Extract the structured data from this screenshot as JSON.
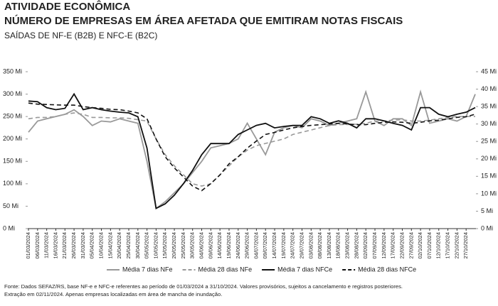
{
  "chart_data": {
    "type": "line",
    "title": "ATIVIDADE ECONÔMICA",
    "subtitle": "NÚMERO DE EMPRESAS EM ÁREA AFETADA QUE EMITIRAM NOTAS FISCAIS",
    "subtitle2": "SAÍDAS DE NF-E (B2B) E NFC-E (B2C)",
    "categories": [
      "01/03/2024",
      "06/03/2024",
      "11/03/2024",
      "16/03/2024",
      "21/03/2024",
      "26/03/2024",
      "31/03/2024",
      "05/04/2024",
      "10/04/2024",
      "15/04/2024",
      "20/04/2024",
      "25/04/2024",
      "30/04/2024",
      "05/05/2024",
      "10/05/2024",
      "15/05/2024",
      "20/05/2024",
      "25/05/2024",
      "30/05/2024",
      "04/06/2024",
      "09/06/2024",
      "14/06/2024",
      "19/06/2024",
      "24/06/2024",
      "29/06/2024",
      "04/07/2024",
      "09/07/2024",
      "14/07/2024",
      "19/07/2024",
      "24/07/2024",
      "29/07/2024",
      "03/08/2024",
      "08/08/2024",
      "13/08/2024",
      "18/08/2024",
      "23/08/2024",
      "28/08/2024",
      "02/09/2024",
      "07/09/2024",
      "12/09/2024",
      "17/09/2024",
      "22/09/2024",
      "27/09/2024",
      "02/10/2024",
      "07/10/2024",
      "12/10/2024",
      "17/10/2024",
      "22/10/2024",
      "27/10/2024",
      null
    ],
    "ylim": [
      0,
      350
    ],
    "yticks": [
      {
        "value": 0,
        "label": "0 Mi"
      },
      {
        "value": 50,
        "label": "50 Mi"
      },
      {
        "value": 100,
        "label": "100 Mi"
      },
      {
        "value": 150,
        "label": "150 Mi"
      },
      {
        "value": 200,
        "label": "200 Mi"
      },
      {
        "value": 250,
        "label": "250 Mi"
      },
      {
        "value": 300,
        "label": "300 Mi"
      },
      {
        "value": 350,
        "label": "350 Mi"
      }
    ],
    "y2lim": [
      0,
      45
    ],
    "y2ticks": [
      {
        "value": 0,
        "label": "0 Mi"
      },
      {
        "value": 5,
        "label": "5 Mi"
      },
      {
        "value": 10,
        "label": "10 Mi"
      },
      {
        "value": 15,
        "label": "15 Mi"
      },
      {
        "value": 20,
        "label": "20 Mi"
      },
      {
        "value": 25,
        "label": "25 Mi"
      },
      {
        "value": 30,
        "label": "30 Mi"
      },
      {
        "value": 35,
        "label": "35 Mi"
      },
      {
        "value": 40,
        "label": "40 Mi"
      },
      {
        "value": 45,
        "label": "45 Mi"
      }
    ],
    "series": [
      {
        "name": "Média 7 dias NFe",
        "color": "#999999",
        "dash": false,
        "values": [
          215,
          240,
          245,
          250,
          255,
          265,
          250,
          230,
          240,
          238,
          245,
          240,
          235,
          150,
          45,
          60,
          80,
          100,
          125,
          150,
          180,
          185,
          190,
          200,
          235,
          200,
          165,
          215,
          225,
          230,
          225,
          245,
          240,
          230,
          235,
          240,
          245,
          305,
          240,
          230,
          245,
          245,
          230,
          305,
          235,
          240,
          245,
          240,
          250,
          300
        ]
      },
      {
        "name": "Média 28 dias NFe",
        "color": "#999999",
        "dash": true,
        "values": [
          245,
          248,
          248,
          250,
          255,
          258,
          255,
          248,
          248,
          247,
          247,
          246,
          243,
          240,
          200,
          165,
          140,
          120,
          100,
          95,
          100,
          120,
          140,
          160,
          175,
          185,
          190,
          195,
          200,
          210,
          215,
          220,
          225,
          230,
          232,
          232,
          233,
          235,
          240,
          240,
          242,
          243,
          240,
          240,
          242,
          245,
          248,
          250,
          250,
          250
        ]
      },
      {
        "name": "Média 7 dias NFCe",
        "color": "#111111",
        "dash": false,
        "axis": "y2",
        "values": [
          36.6,
          36.4,
          34.7,
          34.1,
          34.5,
          38.6,
          34.1,
          34.7,
          34.1,
          33.7,
          33.4,
          33.2,
          32.1,
          23.1,
          5.8,
          7.1,
          9.6,
          12.9,
          16.7,
          21.2,
          24.4,
          24.4,
          24.4,
          27.0,
          28.3,
          29.6,
          30.2,
          28.9,
          29.3,
          29.6,
          29.6,
          32.1,
          31.5,
          30.2,
          30.9,
          30.2,
          28.9,
          31.5,
          31.5,
          30.9,
          30.2,
          29.6,
          28.3,
          34.7,
          34.7,
          32.8,
          32.1,
          32.8,
          33.4,
          34.7
        ]
      },
      {
        "name": "Média 28 dias NFCe",
        "color": "#111111",
        "dash": true,
        "axis": "y2",
        "values": [
          36.0,
          35.7,
          35.6,
          35.5,
          35.4,
          35.4,
          35.0,
          34.7,
          34.5,
          34.2,
          34.1,
          33.7,
          33.2,
          31.5,
          25.7,
          20.6,
          17.4,
          14.8,
          12.2,
          10.9,
          12.9,
          15.4,
          18.6,
          20.6,
          23.1,
          25.1,
          27.0,
          27.6,
          28.3,
          28.9,
          29.3,
          29.6,
          29.8,
          30.0,
          30.2,
          30.0,
          29.8,
          29.8,
          30.2,
          30.5,
          30.6,
          30.5,
          30.2,
          30.5,
          30.9,
          31.1,
          31.5,
          31.9,
          32.1,
          32.8
        ]
      }
    ],
    "footnote": [
      "Fonte: Dados SEFAZ/RS, base NF-e e NFC-e referentes ao período de 01/03/2024 a 31/10/2024. Valores provisórios, sujeitos a cancelamento e registros posteriores.",
      "Extração em 02/11/2024. Apenas empresas localizadas em área de mancha de inundação."
    ]
  }
}
